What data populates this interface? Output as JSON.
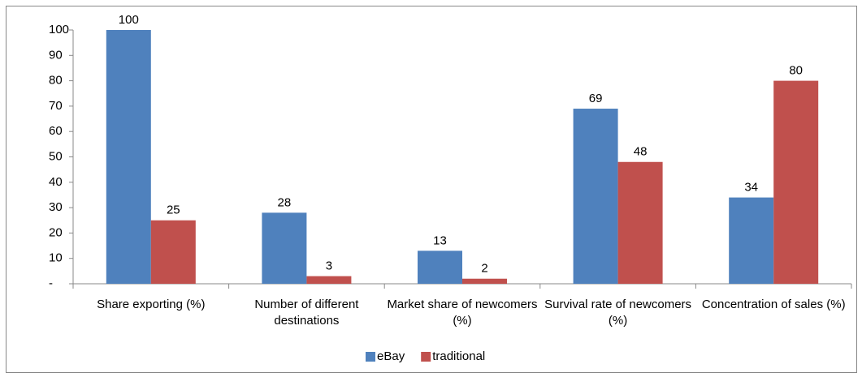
{
  "chart_data": {
    "type": "bar",
    "categories": [
      "Share exporting (%)",
      "Number of different destinations",
      "Market share of newcomers (%)",
      "Survival rate of newcomers (%)",
      "Concentration of sales (%)"
    ],
    "series": [
      {
        "name": "eBay",
        "color": "#4f81bd",
        "values": [
          100,
          28,
          13,
          69,
          34
        ]
      },
      {
        "name": "traditional",
        "color": "#c0504d",
        "values": [
          25,
          3,
          2,
          48,
          80
        ]
      }
    ],
    "ylim": [
      0,
      100
    ],
    "yticks": [
      {
        "value": 0,
        "label": "-"
      },
      10,
      20,
      30,
      40,
      50,
      60,
      70,
      80,
      90,
      100
    ],
    "legend": "bottom"
  }
}
